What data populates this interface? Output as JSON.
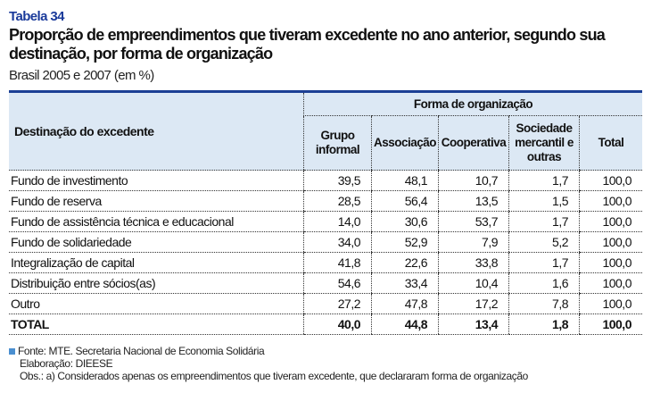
{
  "table_number": "Tabela 34",
  "title": "Proporção de empreendimentos que tiveram excedente no ano anterior, segundo sua destinação, por forma de organização",
  "subtitle": "Brasil 2005 e 2007 (em %)",
  "header": {
    "row_label": "Destinação do excedente",
    "group": "Forma de organização",
    "columns": [
      "Grupo informal",
      "Associação",
      "Cooperativa",
      "Sociedade mercantil e outras",
      "Total"
    ]
  },
  "rows": [
    {
      "label": "Fundo de investimento",
      "values": [
        "39,5",
        "48,1",
        "10,7",
        "1,7",
        "100,0"
      ]
    },
    {
      "label": "Fundo de reserva",
      "values": [
        "28,5",
        "56,4",
        "13,5",
        "1,5",
        "100,0"
      ]
    },
    {
      "label": "Fundo de assistência técnica e educacional",
      "values": [
        "14,0",
        "30,6",
        "53,7",
        "1,7",
        "100,0"
      ]
    },
    {
      "label": "Fundo de solidariedade",
      "values": [
        "34,0",
        "52,9",
        "7,9",
        "5,2",
        "100,0"
      ]
    },
    {
      "label": "Integralização de capital",
      "values": [
        "41,8",
        "22,6",
        "33,8",
        "1,7",
        "100,0"
      ]
    },
    {
      "label": "Distribuição entre sócios(as)",
      "values": [
        "54,6",
        "33,4",
        "10,4",
        "1,6",
        "100,0"
      ]
    },
    {
      "label": "Outro",
      "values": [
        "27,2",
        "47,8",
        "17,2",
        "7,8",
        "100,0"
      ]
    },
    {
      "label": "TOTAL",
      "values": [
        "40,0",
        "44,8",
        "13,4",
        "1,8",
        "100,0"
      ]
    }
  ],
  "footer": {
    "source": "Fonte: MTE. Secretaria Nacional de Economia Solidária",
    "elaboration": "Elaboração: DIEESE",
    "note": "Obs.: a) Considerados apenas os empreendimentos que tiveram excedente, que declararam forma de organização"
  },
  "colors": {
    "accent": "#1b3f94",
    "header_bg": "#dce8f4"
  }
}
